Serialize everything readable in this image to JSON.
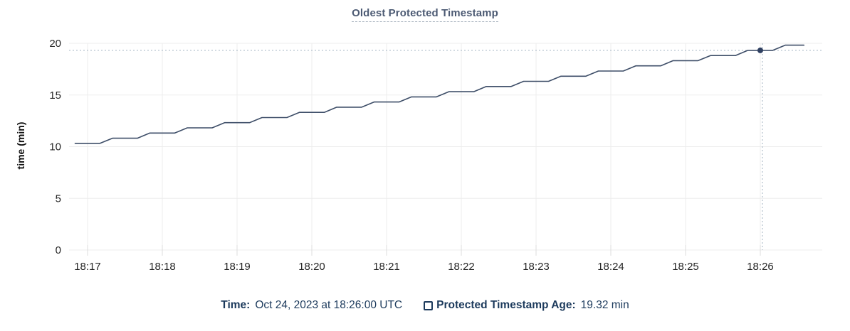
{
  "title": "Oldest Protected Timestamp",
  "tooltip": {
    "time_label": "Time:",
    "time_value": "Oct 24, 2023 at 18:26:00 UTC",
    "series_label": "Protected Timestamp Age:",
    "series_value": "19.32 min"
  },
  "chart_data": {
    "type": "line",
    "title": "Oldest Protected Timestamp",
    "xlabel": "",
    "ylabel": "time (min)",
    "ylim": [
      0,
      20
    ],
    "y_ticks": [
      0,
      5,
      10,
      15,
      20
    ],
    "x_tick_labels": [
      "18:17",
      "18:18",
      "18:19",
      "18:20",
      "18:21",
      "18:22",
      "18:23",
      "18:24",
      "18:25",
      "18:26"
    ],
    "grid": true,
    "legend_position": "bottom",
    "series": [
      {
        "name": "Protected Timestamp Age",
        "unit": "min",
        "note": "x values are seconds relative to 18:26:00; staircase rising ~0.5 min every 30 s",
        "points_sec_rel_1826": [
          [
            -550,
            10.32
          ],
          [
            -530,
            10.32
          ],
          [
            -520,
            10.82
          ],
          [
            -500,
            10.82
          ],
          [
            -490,
            11.32
          ],
          [
            -470,
            11.32
          ],
          [
            -460,
            11.82
          ],
          [
            -440,
            11.82
          ],
          [
            -430,
            12.32
          ],
          [
            -410,
            12.32
          ],
          [
            -400,
            12.82
          ],
          [
            -380,
            12.82
          ],
          [
            -370,
            13.32
          ],
          [
            -350,
            13.32
          ],
          [
            -340,
            13.82
          ],
          [
            -320,
            13.82
          ],
          [
            -310,
            14.32
          ],
          [
            -290,
            14.32
          ],
          [
            -280,
            14.82
          ],
          [
            -260,
            14.82
          ],
          [
            -250,
            15.32
          ],
          [
            -230,
            15.32
          ],
          [
            -220,
            15.82
          ],
          [
            -200,
            15.82
          ],
          [
            -190,
            16.32
          ],
          [
            -170,
            16.32
          ],
          [
            -160,
            16.82
          ],
          [
            -140,
            16.82
          ],
          [
            -130,
            17.32
          ],
          [
            -110,
            17.32
          ],
          [
            -100,
            17.82
          ],
          [
            -80,
            17.82
          ],
          [
            -70,
            18.32
          ],
          [
            -50,
            18.32
          ],
          [
            -40,
            18.82
          ],
          [
            -20,
            18.82
          ],
          [
            -10,
            19.32
          ],
          [
            10,
            19.32
          ],
          [
            20,
            19.82
          ],
          [
            35,
            19.82
          ]
        ]
      }
    ],
    "highlight": {
      "x_label": "18:26:00",
      "value": 19.32,
      "crosshair": true
    }
  },
  "colors": {
    "line": "#3e4e68",
    "point": "#2f4061",
    "crosshair": "#a3b3c1",
    "grid": "#ededed",
    "tick": "#dcdcdc",
    "title": "#4c5a73",
    "legend_text": "#1c3a5c",
    "axis_text": "#262626"
  }
}
